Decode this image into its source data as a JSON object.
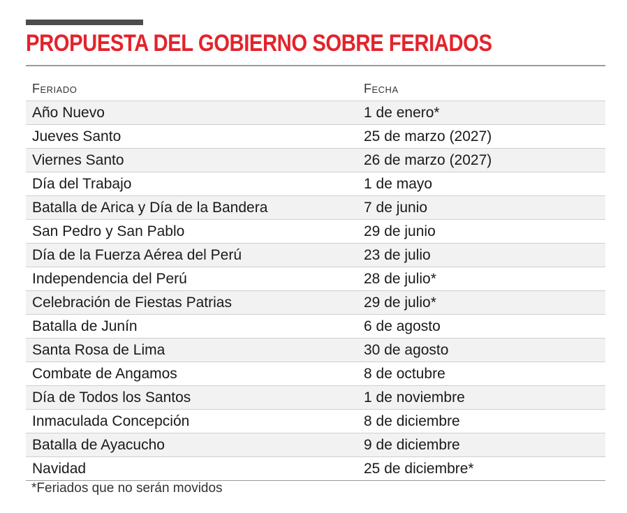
{
  "title": "PROPUESTA DEL GOBIERNO SOBRE FERIADOS",
  "table": {
    "headers": {
      "holiday": "Feriado",
      "date": "Fecha"
    },
    "rows": [
      {
        "holiday": "Año Nuevo",
        "date": "1 de enero*"
      },
      {
        "holiday": "Jueves Santo",
        "date": "25 de marzo (2027)"
      },
      {
        "holiday": "Viernes Santo",
        "date": "26 de marzo (2027)"
      },
      {
        "holiday": "Día del Trabajo",
        "date": "1 de mayo"
      },
      {
        "holiday": "Batalla de Arica y Día de la Bandera",
        "date": "7 de junio"
      },
      {
        "holiday": "San Pedro y San Pablo",
        "date": "29 de junio"
      },
      {
        "holiday": "Día de la Fuerza Aérea del Perú",
        "date": "23 de julio"
      },
      {
        "holiday": "Independencia del Perú",
        "date": "28 de julio*"
      },
      {
        "holiday": "Celebración de Fiestas Patrias",
        "date": "29 de julio*"
      },
      {
        "holiday": "Batalla de Junín",
        "date": "6 de agosto"
      },
      {
        "holiday": "Santa Rosa de Lima",
        "date": "30 de agosto"
      },
      {
        "holiday": "Combate de Angamos",
        "date": "8 de octubre"
      },
      {
        "holiday": "Día de Todos los Santos",
        "date": "1 de noviembre"
      },
      {
        "holiday": "Inmaculada Concepción",
        "date": "8 de diciembre"
      },
      {
        "holiday": "Batalla de Ayacucho",
        "date": "9 de diciembre"
      },
      {
        "holiday": "Navidad",
        "date": "25 de diciembre*"
      }
    ]
  },
  "footnote": "*Feriados que no serán movidos",
  "colors": {
    "title": "#e3232b",
    "accent_bar": "#4d4d4d",
    "row_shade": "#f2f2f2"
  }
}
